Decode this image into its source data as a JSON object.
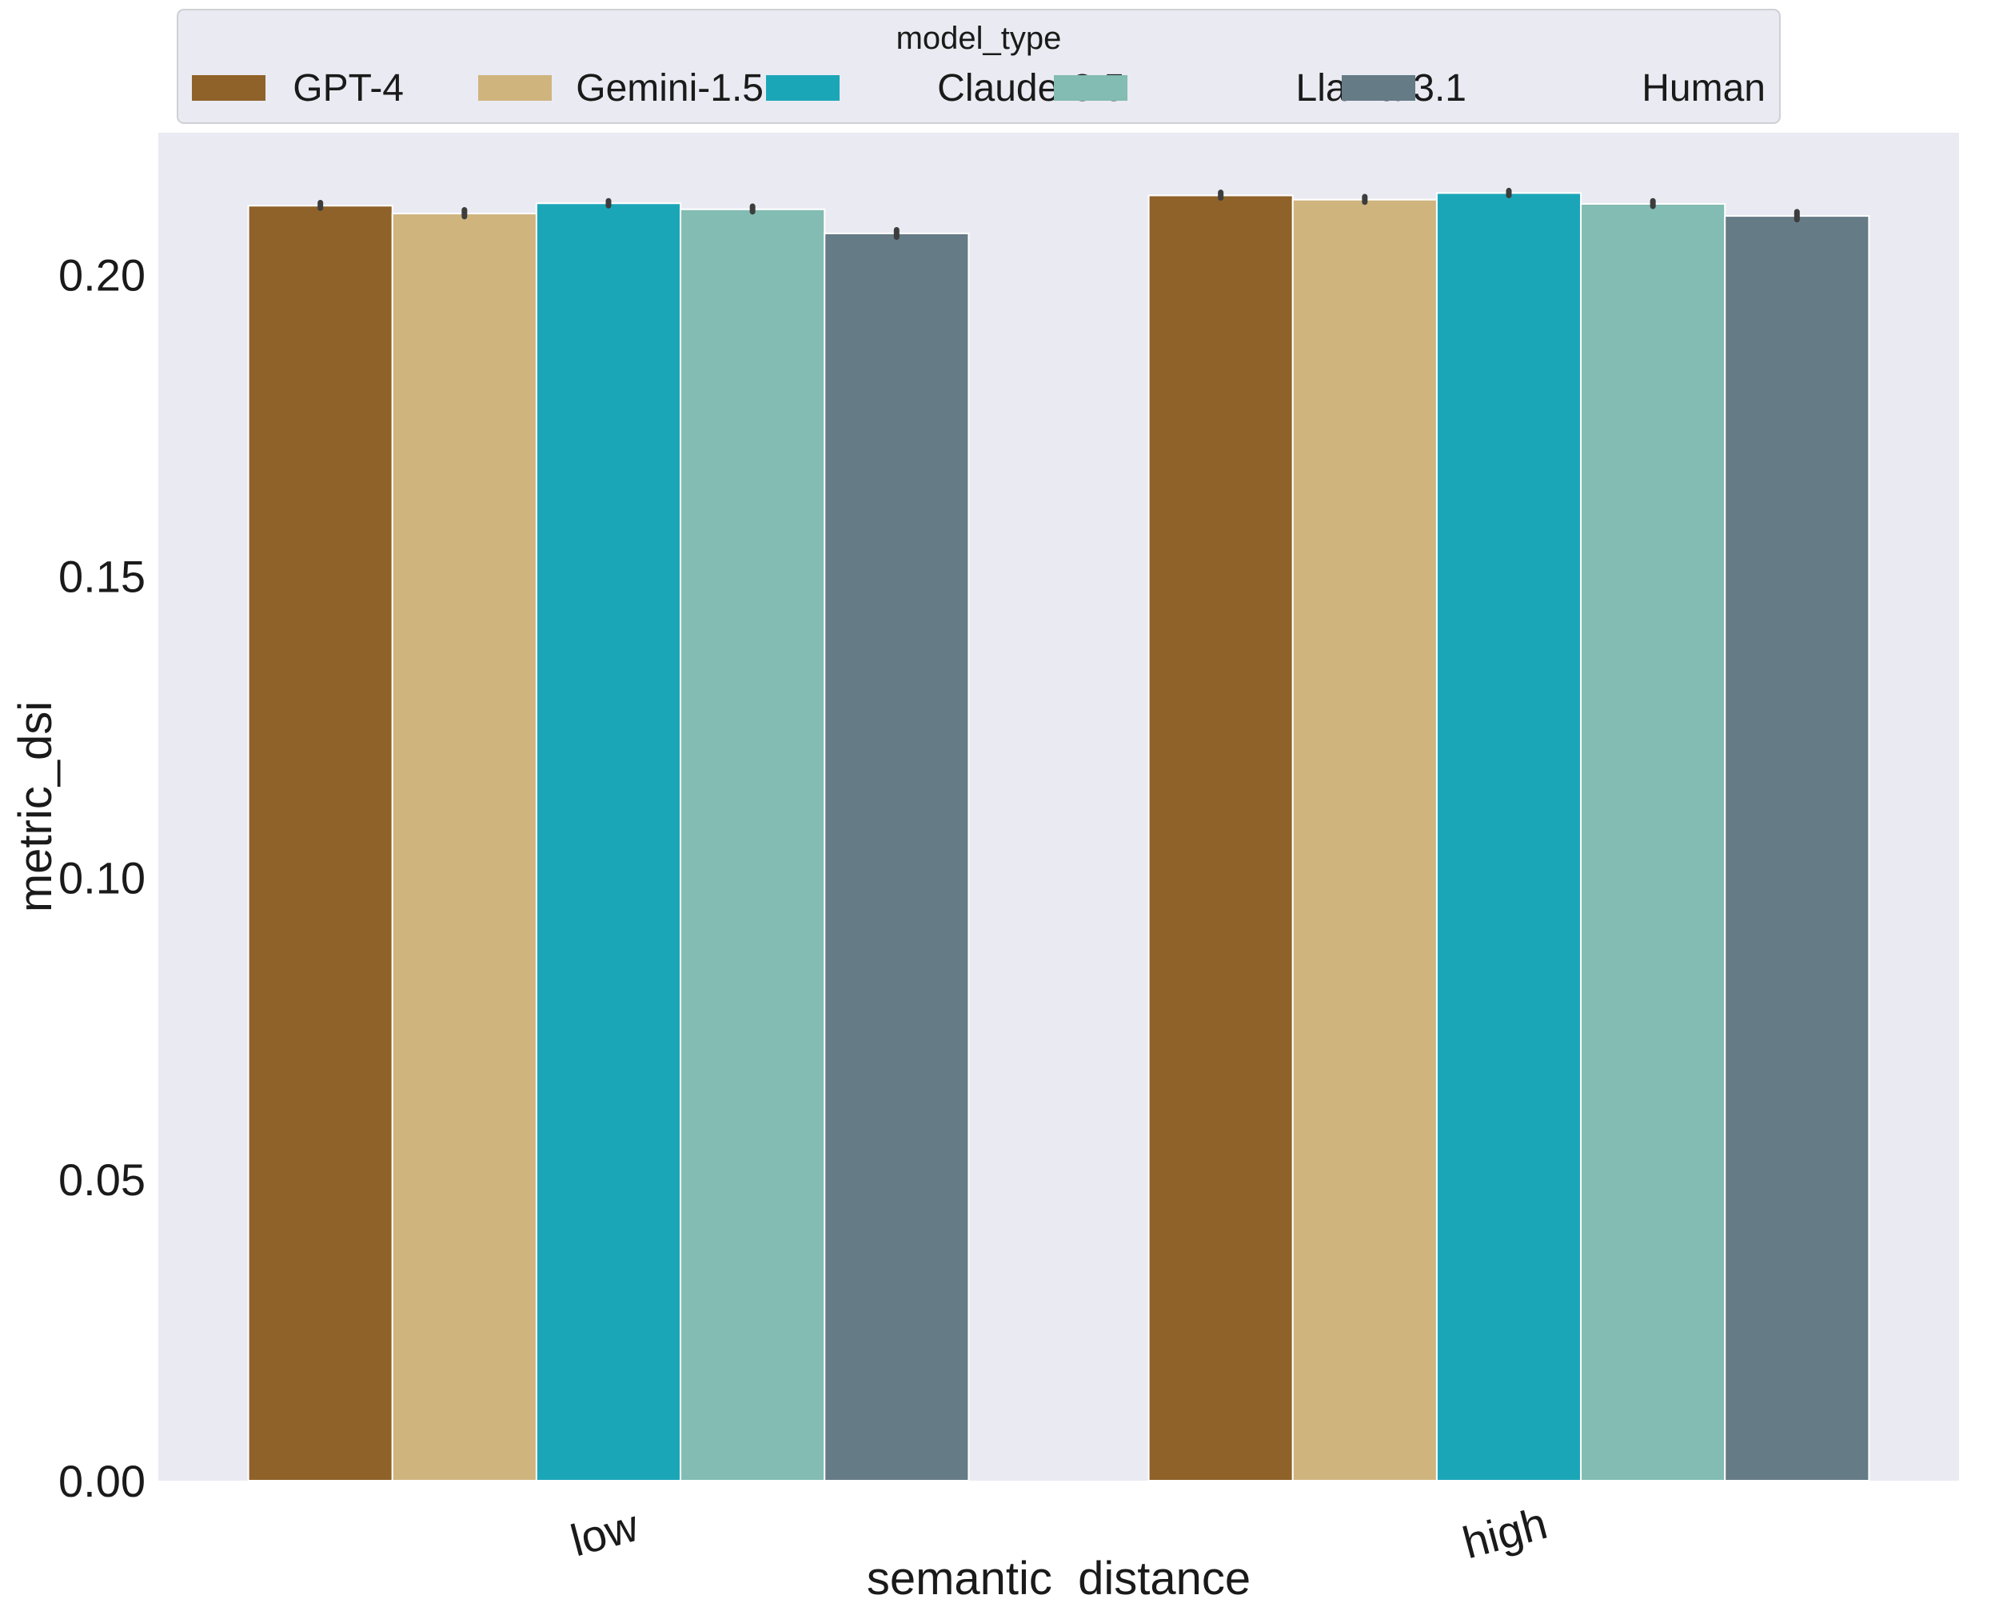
{
  "chart_data": {
    "type": "bar",
    "title": "",
    "xlabel": "semantic_distance",
    "ylabel": "metric_dsi",
    "categories": [
      "low",
      "high"
    ],
    "ylim": [
      0,
      0.2235
    ],
    "yticks": [
      "0.00",
      "0.05",
      "0.10",
      "0.15",
      "0.20"
    ],
    "ytick_values": [
      0.0,
      0.05,
      0.1,
      0.15,
      0.2
    ],
    "grid": false,
    "legend": {
      "title": "model_type",
      "position": "top-center"
    },
    "series": [
      {
        "name": "GPT-4",
        "color": "#8f6229",
        "values": [
          0.2114,
          0.2131
        ],
        "err_low": [
          0.211,
          0.2127
        ],
        "err_high": [
          0.2119,
          0.2136
        ]
      },
      {
        "name": "Gemini-1.5",
        "color": "#cfb47e",
        "values": [
          0.2101,
          0.2124
        ],
        "err_low": [
          0.2096,
          0.212
        ],
        "err_high": [
          0.2107,
          0.2129
        ]
      },
      {
        "name": "Claude-3.5",
        "color": "#1ba6b8",
        "values": [
          0.2118,
          0.2135
        ],
        "err_low": [
          0.2114,
          0.2131
        ],
        "err_high": [
          0.2122,
          0.2139
        ]
      },
      {
        "name": "Llama-3.1",
        "color": "#82bcb2",
        "values": [
          0.2108,
          0.2117
        ],
        "err_low": [
          0.2104,
          0.2113
        ],
        "err_high": [
          0.2113,
          0.2122
        ]
      },
      {
        "name": "Human",
        "color": "#657b85",
        "values": [
          0.2068,
          0.2097
        ],
        "err_low": [
          0.2062,
          0.2091
        ],
        "err_high": [
          0.2074,
          0.2104
        ]
      }
    ]
  }
}
